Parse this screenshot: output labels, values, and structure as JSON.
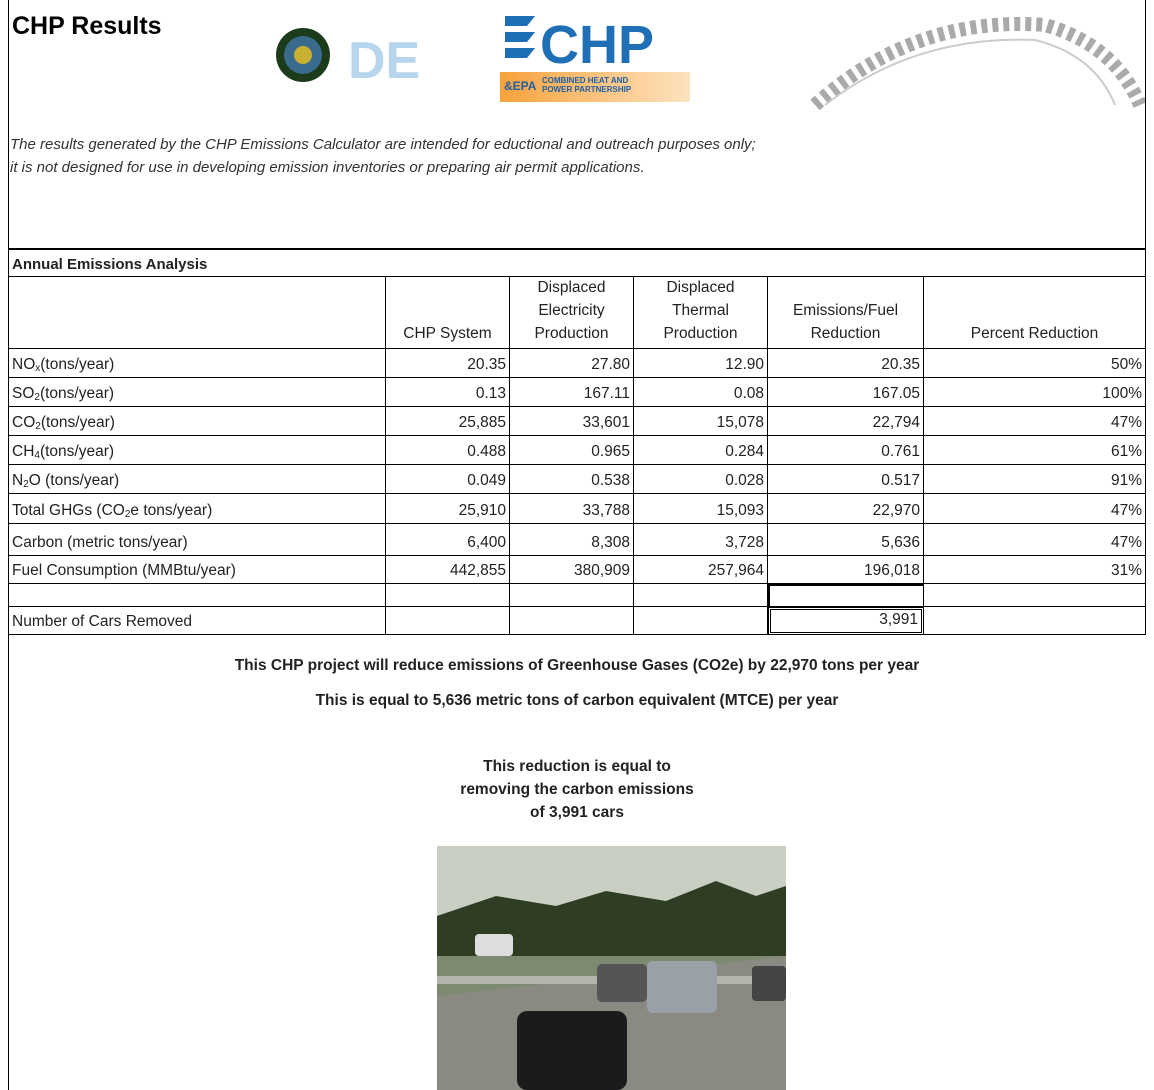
{
  "header": {
    "title": "CHP Results",
    "doe_logo_text": "DE",
    "chp_logo_text": "CHP",
    "epa_text": "&EPA",
    "partnership_lines": [
      "COMBINED HEAT AND",
      "POWER PARTNERSHIP"
    ]
  },
  "disclaimer": [
    "The results generated by the CHP Emissions Calculator are intended for eductional and outreach purposes only;",
    "it is not designed for use in developing emission inventories or preparing air permit applications."
  ],
  "table": {
    "title": "Annual Emissions Analysis",
    "columns": [
      [
        "CHP System"
      ],
      [
        "Displaced",
        "Electricity",
        "Production"
      ],
      [
        "Displaced",
        "Thermal",
        "Production"
      ],
      [
        "Emissions/Fuel",
        "Reduction"
      ],
      [
        "Percent Reduction"
      ]
    ],
    "rows": [
      {
        "label": [
          "NO",
          "x",
          " (tons/year)"
        ],
        "values": [
          "20.35",
          "27.80",
          "12.90",
          "20.35",
          "50%"
        ]
      },
      {
        "label": [
          "SO",
          "2",
          " (tons/year)"
        ],
        "values": [
          "0.13",
          "167.11",
          "0.08",
          "167.05",
          "100%"
        ]
      },
      {
        "label": [
          "CO",
          "2",
          " (tons/year)"
        ],
        "values": [
          "25,885",
          "33,601",
          "15,078",
          "22,794",
          "47%"
        ]
      },
      {
        "label": [
          "CH",
          "4",
          " (tons/year)"
        ],
        "values": [
          "0.488",
          "0.965",
          "0.284",
          "0.761",
          "61%"
        ]
      },
      {
        "label": [
          "N",
          "2",
          "O (tons/year)"
        ],
        "values": [
          "0.049",
          "0.538",
          "0.028",
          "0.517",
          "91%"
        ]
      },
      {
        "label": [
          "Total GHGs (CO",
          "2",
          "e tons/year)"
        ],
        "values": [
          "25,910",
          "33,788",
          "15,093",
          "22,970",
          "47%"
        ]
      },
      {
        "label": [
          "Carbon (metric tons/year)"
        ],
        "values": [
          "6,400",
          "8,308",
          "3,728",
          "5,636",
          "47%"
        ]
      },
      {
        "label": [
          "Fuel Consumption (MMBtu/year)"
        ],
        "values": [
          "442,855",
          "380,909",
          "257,964",
          "196,018",
          "31%"
        ]
      }
    ],
    "cars_row": {
      "label": "Number of Cars Removed",
      "reduction": "3,991"
    }
  },
  "summary": {
    "lines": [
      "This CHP project will reduce emissions of Greenhouse Gases (CO2e) by 22,970 tons per year",
      "This is equal to 5,636 metric tons of carbon equivalent (MTCE) per year"
    ],
    "cars_lines": [
      "This reduction is equal to",
      "removing the carbon emissions",
      "of 3,991 cars"
    ]
  }
}
